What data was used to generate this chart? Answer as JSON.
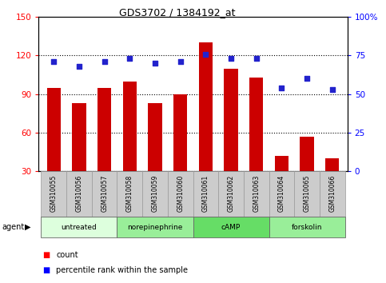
{
  "title": "GDS3702 / 1384192_at",
  "samples": [
    "GSM310055",
    "GSM310056",
    "GSM310057",
    "GSM310058",
    "GSM310059",
    "GSM310060",
    "GSM310061",
    "GSM310062",
    "GSM310063",
    "GSM310064",
    "GSM310065",
    "GSM310066"
  ],
  "counts": [
    95,
    83,
    95,
    100,
    83,
    90,
    130,
    110,
    103,
    42,
    57,
    40
  ],
  "percentile": [
    71,
    68,
    71,
    73,
    70,
    71,
    76,
    73,
    73,
    54,
    60,
    53
  ],
  "ylim_left": [
    30,
    150
  ],
  "ylim_right": [
    0,
    100
  ],
  "yticks_left": [
    30,
    60,
    90,
    120,
    150
  ],
  "yticks_right": [
    0,
    25,
    50,
    75,
    100
  ],
  "ytick_right_labels": [
    "0",
    "25",
    "50",
    "75",
    "100%"
  ],
  "bar_color": "#cc0000",
  "dot_color": "#2222cc",
  "agent_groups": [
    {
      "label": "untreated",
      "start": 0,
      "end": 3,
      "color": "#ddffdd"
    },
    {
      "label": "norepinephrine",
      "start": 3,
      "end": 6,
      "color": "#99ee99"
    },
    {
      "label": "cAMP",
      "start": 6,
      "end": 9,
      "color": "#66dd66"
    },
    {
      "label": "forskolin",
      "start": 9,
      "end": 12,
      "color": "#99ee99"
    }
  ],
  "sample_box_color": "#cccccc",
  "legend_count_label": "count",
  "legend_pct_label": "percentile rank within the sample",
  "agent_label": "agent"
}
